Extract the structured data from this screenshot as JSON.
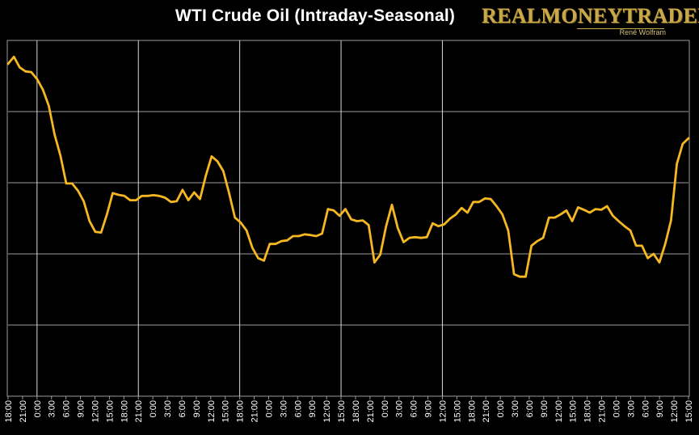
{
  "chart_data": {
    "type": "line",
    "title": "WTI Crude Oil (Intraday-Seasonal)",
    "xlabel": "",
    "ylabel": "",
    "ylim": [
      0,
      100
    ],
    "ygrid": [
      20,
      40,
      60,
      80
    ],
    "grid": true,
    "tick_labels": [
      "18:00",
      "21:00",
      "0:00",
      "3:00",
      "6:00",
      "9:00",
      "12:00",
      "15:00",
      "18:00",
      "21:00",
      "0:00",
      "3:00",
      "6:00",
      "9:00",
      "12:00",
      "15:00",
      "18:00",
      "21:00",
      "0:00",
      "3:00",
      "6:00",
      "9:00",
      "12:00",
      "15:00",
      "18:00",
      "21:00",
      "0:00",
      "3:00",
      "6:00",
      "9:00",
      "12:00",
      "15:00",
      "18:00",
      "21:00",
      "0:00",
      "3:00",
      "6:00",
      "9:00",
      "12:00",
      "15:00",
      "18:00",
      "21:00",
      "0:00",
      "3:00",
      "6:00",
      "9:00",
      "12:00",
      "15:00"
    ],
    "separator_ticks": [
      2,
      9,
      16,
      23,
      30
    ],
    "series": [
      {
        "name": "WTI Crude Oil",
        "color": "#f5b722",
        "values": [
          93.4,
          95.4,
          92.4,
          91.3,
          91.1,
          89.1,
          86.1,
          81.6,
          73.5,
          67.6,
          59.8,
          59.8,
          57.8,
          54.8,
          49.2,
          46.2,
          46.0,
          51.1,
          57.1,
          56.6,
          56.3,
          55.1,
          55.1,
          56.3,
          56.3,
          56.5,
          56.3,
          55.8,
          54.6,
          54.8,
          58.0,
          55.1,
          57.3,
          55.4,
          62.0,
          67.4,
          66.0,
          63.3,
          57.1,
          50.2,
          48.8,
          46.6,
          41.7,
          38.8,
          38.1,
          42.8,
          42.8,
          43.6,
          43.8,
          45.0,
          45.0,
          45.5,
          45.3,
          45.0,
          45.7,
          52.6,
          52.2,
          50.7,
          52.6,
          49.7,
          49.2,
          49.4,
          48.1,
          37.6,
          39.8,
          47.8,
          53.8,
          47.3,
          43.3,
          44.5,
          44.7,
          44.5,
          44.7,
          48.6,
          47.8,
          48.3,
          49.9,
          51.1,
          52.9,
          51.6,
          54.6,
          54.6,
          55.6,
          55.4,
          53.4,
          51.1,
          46.6,
          34.3,
          33.6,
          33.6,
          42.3,
          43.6,
          44.5,
          50.2,
          50.2,
          51.1,
          52.2,
          49.2,
          53.1,
          52.4,
          51.6,
          52.6,
          52.4,
          53.4,
          50.7,
          49.2,
          47.8,
          46.6,
          42.3,
          42.3,
          38.8,
          40.0,
          37.6,
          42.8,
          49.4,
          65.3,
          70.9,
          72.5
        ]
      }
    ]
  },
  "logo": {
    "main": "REALMONEYTRADER",
    "sub": "René Wolfram"
  }
}
